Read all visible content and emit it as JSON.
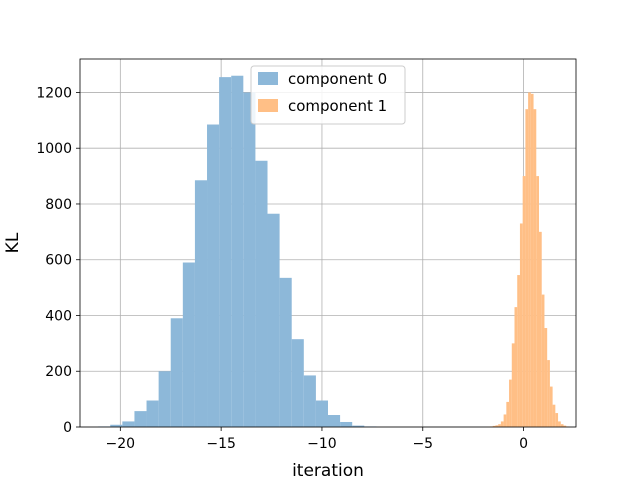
{
  "chart_data": {
    "type": "histogram",
    "xlabel": "iteration",
    "ylabel": "KL",
    "xlim": [
      -22.0,
      2.6
    ],
    "ylim": [
      0,
      1320
    ],
    "x_ticks": [
      -20,
      -15,
      -10,
      -5,
      0
    ],
    "x_tick_labels": [
      "−20",
      "−15",
      "−10",
      "−5",
      "0"
    ],
    "y_ticks": [
      0,
      200,
      400,
      600,
      800,
      1000,
      1200
    ],
    "y_tick_labels": [
      "0",
      "200",
      "400",
      "600",
      "800",
      "1000",
      "1200"
    ],
    "grid": true,
    "legend_position": "top-center",
    "series": [
      {
        "name": "component 0",
        "color": "#8db8d9",
        "bin_start": -21.1,
        "bin_width": 0.6,
        "values": [
          2,
          8,
          20,
          57,
          95,
          200,
          390,
          590,
          885,
          1085,
          1255,
          1260,
          1200,
          955,
          765,
          535,
          315,
          185,
          95,
          43,
          18,
          5,
          2
        ]
      },
      {
        "name": "component 1",
        "color": "#ffbf86",
        "bin_start": -1.8,
        "bin_width": 0.135,
        "values": [
          1,
          2,
          4,
          6,
          10,
          20,
          45,
          90,
          170,
          300,
          430,
          545,
          730,
          900,
          1140,
          1200,
          1195,
          1140,
          900,
          700,
          475,
          355,
          240,
          145,
          80,
          50,
          20,
          10,
          5,
          2
        ]
      }
    ]
  }
}
